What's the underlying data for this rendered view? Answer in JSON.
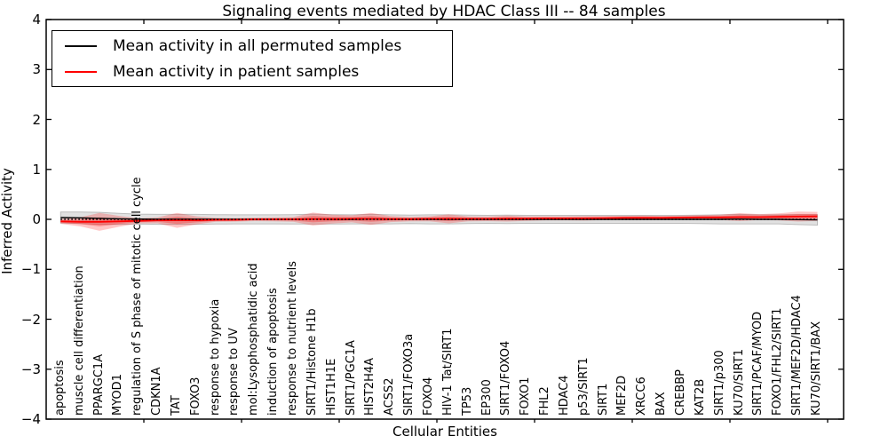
{
  "figure": {
    "background": "#ffffff"
  },
  "chart_data": {
    "type": "line",
    "title": "Signaling events mediated by HDAC Class III -- 84 samples",
    "xlabel": "Cellular Entities",
    "ylabel": "Inferred Activity",
    "ylim": [
      -4,
      4
    ],
    "y_tick_values": [
      4,
      3,
      2,
      1,
      0,
      -1,
      -2,
      -3,
      -4
    ],
    "y_tick_labels": [
      "4",
      "3",
      "2",
      "1",
      "0",
      "−1",
      "−2",
      "−3",
      "−4"
    ],
    "grid": false,
    "legend_position": "upper left",
    "categories": [
      "apoptosis",
      "muscle cell differentiation",
      "PPARGC1A",
      "MYOD1",
      "regulation of S phase of mitotic cell cycle",
      "CDKN1A",
      "TAT",
      "FOXO3",
      "response to hypoxia",
      "response to UV",
      "mol:Lysophosphatidic acid",
      "induction of apoptosis",
      "response to nutrient levels",
      "SIRT1/Histone H1b",
      "HIST1H1E",
      "SIRT1/PGC1A",
      "HIST2H4A",
      "ACSS2",
      "SIRT1/FOXO3a",
      "FOXO4",
      "HIV-1 Tat/SIRT1",
      "TP53",
      "EP300",
      "SIRT1/FOXO4",
      "FOXO1",
      "FHL2",
      "HDAC4",
      "p53/SIRT1",
      "SIRT1",
      "MEF2D",
      "XRCC6",
      "BAX",
      "CREBBP",
      "KAT2B",
      "SIRT1/p300",
      "KU70/SIRT1",
      "SIRT1/PCAF/MYOD",
      "FOXO1/FHL2/SIRT1",
      "SIRT1/MEF2D/HDAC4",
      "KU70/SIRT1/BAX"
    ],
    "series": [
      {
        "name": "Mean activity in all permuted samples",
        "color": "#000000",
        "values": [
          0.035,
          0.03,
          0.02,
          0.01,
          0.005,
          0,
          0,
          0,
          0,
          0,
          0,
          0,
          0,
          0.005,
          0,
          0,
          0.005,
          0,
          0,
          0,
          0,
          0,
          0,
          0,
          0,
          0,
          0,
          0,
          0,
          0,
          0,
          0,
          0,
          0,
          0,
          0.005,
          0,
          0,
          -0.005,
          -0.01
        ]
      },
      {
        "name": "Mean activity in patient samples",
        "color": "#ff0000",
        "values": [
          -0.04,
          -0.05,
          -0.05,
          -0.04,
          -0.03,
          -0.02,
          -0.02,
          -0.02,
          -0.01,
          -0.01,
          0,
          0,
          0,
          0.005,
          0.005,
          0.01,
          0.01,
          0.005,
          0.005,
          0.01,
          0.01,
          0.01,
          0.01,
          0.015,
          0.015,
          0.02,
          0.02,
          0.02,
          0.025,
          0.03,
          0.03,
          0.03,
          0.035,
          0.04,
          0.04,
          0.045,
          0.045,
          0.05,
          0.055,
          0.06
        ]
      }
    ],
    "bands": [
      {
        "name": "std of permuted samples",
        "color": "#c8c8c8",
        "opacity": 0.55,
        "center_series": 0,
        "halfwidths": [
          0.11,
          0.115,
          0.12,
          0.11,
          0.1,
          0.1,
          0.1,
          0.1,
          0.095,
          0.09,
          0.09,
          0.09,
          0.095,
          0.1,
          0.095,
          0.09,
          0.095,
          0.09,
          0.085,
          0.09,
          0.09,
          0.085,
          0.08,
          0.085,
          0.08,
          0.08,
          0.08,
          0.08,
          0.08,
          0.08,
          0.08,
          0.08,
          0.08,
          0.085,
          0.09,
          0.095,
          0.09,
          0.09,
          0.1,
          0.105
        ]
      },
      {
        "name": "std of patient samples",
        "color": "#ff0000",
        "opacity": 0.22,
        "center_series": 1,
        "halfwidths": [
          0.05,
          0.09,
          0.18,
          0.11,
          0.05,
          0.06,
          0.15,
          0.08,
          0.04,
          0.035,
          0.035,
          0.04,
          0.05,
          0.13,
          0.09,
          0.07,
          0.12,
          0.06,
          0.045,
          0.05,
          0.09,
          0.05,
          0.045,
          0.06,
          0.045,
          0.04,
          0.04,
          0.045,
          0.04,
          0.04,
          0.045,
          0.04,
          0.04,
          0.045,
          0.055,
          0.08,
          0.06,
          0.07,
          0.1,
          0.09
        ]
      }
    ],
    "zero_line": {
      "y": 0,
      "style": "dotted",
      "color": "#000000"
    }
  }
}
